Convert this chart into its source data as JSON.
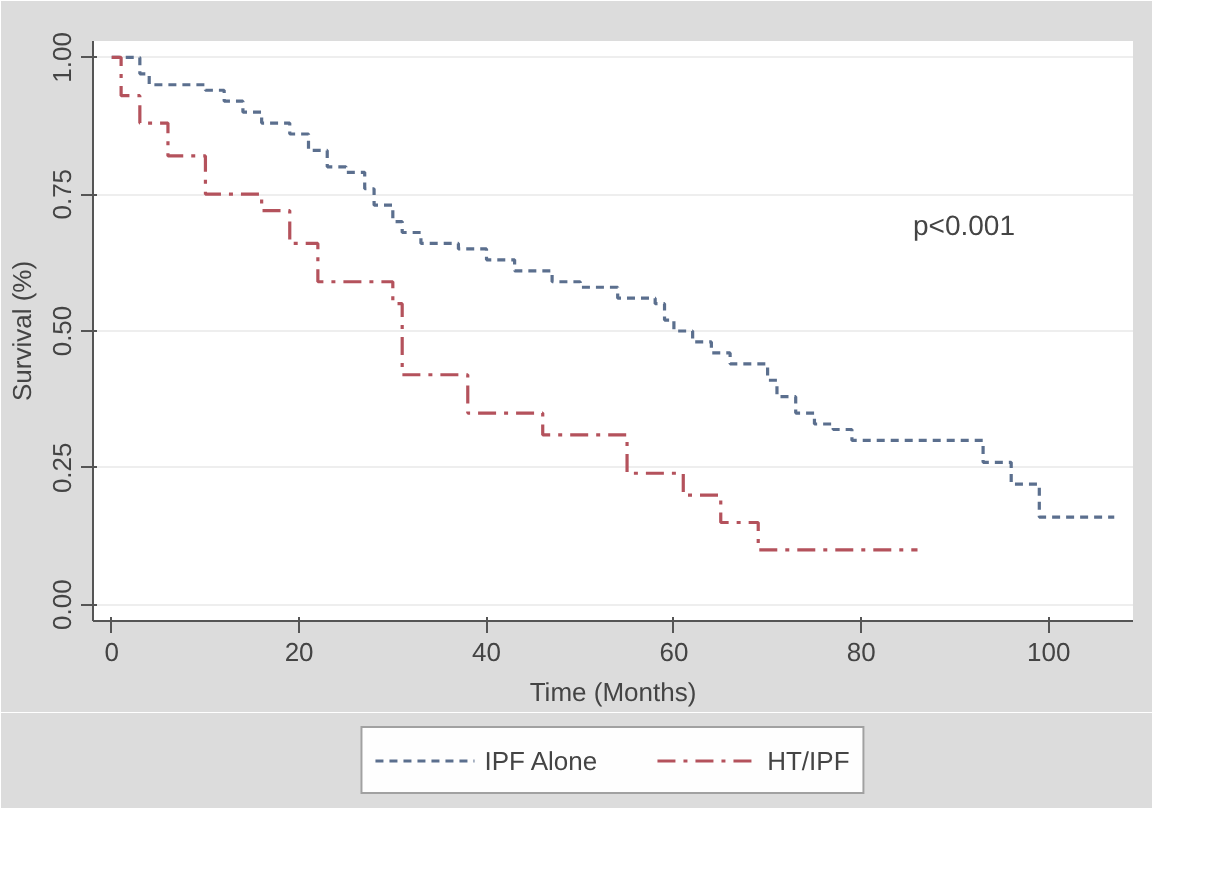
{
  "chart_data": {
    "type": "step",
    "xlabel": "Time (Months)",
    "ylabel": "Survival (%)",
    "xlim": [
      -2,
      109
    ],
    "ylim": [
      -0.03,
      1.03
    ],
    "xticks": [
      0,
      20,
      40,
      60,
      80,
      100
    ],
    "yticks": [
      {
        "value": 0,
        "label": "0.00"
      },
      {
        "value": 0.25,
        "label": "0.25"
      },
      {
        "value": 0.5,
        "label": "0.50"
      },
      {
        "value": 0.75,
        "label": "0.75"
      },
      {
        "value": 1,
        "label": "1.00"
      }
    ],
    "grid": "y",
    "legend": "bottom",
    "line_style": "dashed",
    "annotations": [
      "p<0.001"
    ],
    "series": [
      {
        "name": "IPF Alone",
        "color": "#5b6f8e",
        "x": [
          0,
          3,
          4,
          10,
          12,
          14,
          16,
          19,
          21,
          23,
          25,
          27,
          28,
          30,
          31,
          33,
          37,
          40,
          43,
          47,
          50,
          54,
          58,
          59,
          60,
          62,
          64,
          66,
          70,
          71,
          73,
          75,
          77,
          79,
          93,
          96,
          99,
          107
        ],
        "values": [
          1.0,
          0.97,
          0.95,
          0.94,
          0.92,
          0.9,
          0.88,
          0.86,
          0.83,
          0.8,
          0.79,
          0.76,
          0.73,
          0.7,
          0.68,
          0.66,
          0.65,
          0.63,
          0.61,
          0.59,
          0.58,
          0.56,
          0.55,
          0.52,
          0.5,
          0.48,
          0.46,
          0.44,
          0.41,
          0.38,
          0.35,
          0.33,
          0.32,
          0.3,
          0.26,
          0.22,
          0.16,
          0.16
        ]
      },
      {
        "name": "HT/IPF",
        "color": "#b4525c",
        "x": [
          0,
          1,
          3,
          6,
          10,
          16,
          19,
          22,
          30,
          31,
          38,
          46,
          55,
          61,
          65,
          69,
          86
        ],
        "values": [
          1.0,
          0.93,
          0.88,
          0.82,
          0.75,
          0.72,
          0.66,
          0.59,
          0.55,
          0.42,
          0.35,
          0.31,
          0.24,
          0.2,
          0.15,
          0.1,
          0.1
        ]
      }
    ]
  }
}
